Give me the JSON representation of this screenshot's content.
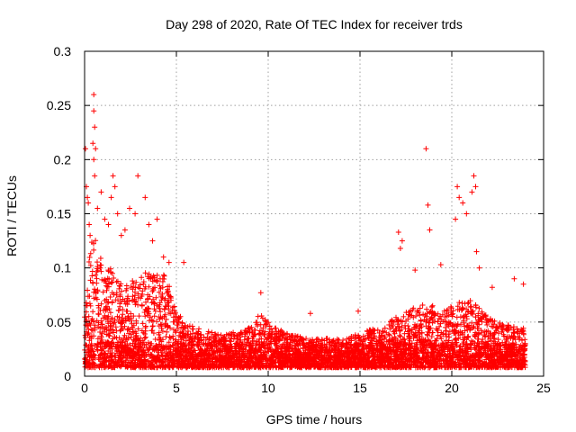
{
  "chart_data": {
    "type": "scatter",
    "title": "Day 298 of 2020, Rate Of TEC Index for receiver trds",
    "xlabel": "GPS time / hours",
    "ylabel": "ROTI / TECUs",
    "xlim": [
      0,
      25
    ],
    "ylim": [
      0,
      0.3
    ],
    "xticks": [
      0,
      5,
      10,
      15,
      20,
      25
    ],
    "xtick_labels": [
      "0",
      "5",
      "10",
      "15",
      "20",
      "25"
    ],
    "yticks": [
      0,
      0.05,
      0.1,
      0.15,
      0.2,
      0.25,
      0.3
    ],
    "ytick_labels": [
      "0",
      "0.05",
      "0.1",
      "0.15",
      "0.2",
      "0.25",
      "0.3"
    ],
    "grid": true,
    "marker": "+",
    "marker_color": "#ff0000",
    "envelope": {
      "x": [
        0,
        0.3,
        0.5,
        1,
        1.5,
        2,
        2.5,
        3,
        3.5,
        4,
        4.5,
        5,
        5.5,
        6,
        7,
        8,
        9,
        9.5,
        10,
        11,
        12,
        13,
        14,
        15,
        16,
        17,
        17.5,
        18,
        18.5,
        19,
        19.5,
        20,
        20.5,
        21,
        21.5,
        22,
        22.5,
        23,
        23.5,
        24
      ],
      "y": [
        0.08,
        0.12,
        0.14,
        0.1,
        0.1,
        0.09,
        0.09,
        0.09,
        0.1,
        0.1,
        0.09,
        0.06,
        0.05,
        0.045,
        0.04,
        0.04,
        0.045,
        0.06,
        0.05,
        0.04,
        0.035,
        0.035,
        0.035,
        0.04,
        0.045,
        0.055,
        0.06,
        0.065,
        0.07,
        0.065,
        0.06,
        0.065,
        0.07,
        0.07,
        0.065,
        0.055,
        0.05,
        0.05,
        0.045,
        0.045
      ]
    },
    "outliers": [
      [
        0.05,
        0.21
      ],
      [
        0.1,
        0.175
      ],
      [
        0.15,
        0.165
      ],
      [
        0.2,
        0.16
      ],
      [
        0.25,
        0.14
      ],
      [
        0.3,
        0.13
      ],
      [
        0.45,
        0.215
      ],
      [
        0.5,
        0.2
      ],
      [
        0.5,
        0.26
      ],
      [
        0.5,
        0.245
      ],
      [
        0.55,
        0.23
      ],
      [
        0.6,
        0.21
      ],
      [
        0.55,
        0.185
      ],
      [
        0.7,
        0.155
      ],
      [
        0.9,
        0.17
      ],
      [
        1.1,
        0.145
      ],
      [
        1.3,
        0.14
      ],
      [
        1.45,
        0.165
      ],
      [
        1.55,
        0.185
      ],
      [
        1.65,
        0.175
      ],
      [
        1.8,
        0.15
      ],
      [
        2.0,
        0.13
      ],
      [
        2.2,
        0.135
      ],
      [
        2.45,
        0.155
      ],
      [
        2.75,
        0.15
      ],
      [
        2.9,
        0.185
      ],
      [
        3.3,
        0.165
      ],
      [
        3.5,
        0.14
      ],
      [
        3.7,
        0.125
      ],
      [
        3.95,
        0.145
      ],
      [
        4.3,
        0.11
      ],
      [
        4.6,
        0.105
      ],
      [
        5.4,
        0.105
      ],
      [
        9.6,
        0.077
      ],
      [
        12.3,
        0.058
      ],
      [
        14.9,
        0.06
      ],
      [
        17.1,
        0.133
      ],
      [
        17.2,
        0.118
      ],
      [
        17.3,
        0.125
      ],
      [
        18.0,
        0.098
      ],
      [
        18.6,
        0.21
      ],
      [
        18.7,
        0.158
      ],
      [
        18.8,
        0.135
      ],
      [
        19.4,
        0.103
      ],
      [
        20.2,
        0.145
      ],
      [
        20.3,
        0.175
      ],
      [
        20.4,
        0.165
      ],
      [
        20.6,
        0.16
      ],
      [
        20.8,
        0.15
      ],
      [
        21.1,
        0.17
      ],
      [
        21.2,
        0.185
      ],
      [
        21.3,
        0.175
      ],
      [
        21.35,
        0.115
      ],
      [
        21.5,
        0.1
      ],
      [
        22.2,
        0.082
      ],
      [
        23.4,
        0.09
      ],
      [
        23.9,
        0.085
      ]
    ]
  }
}
